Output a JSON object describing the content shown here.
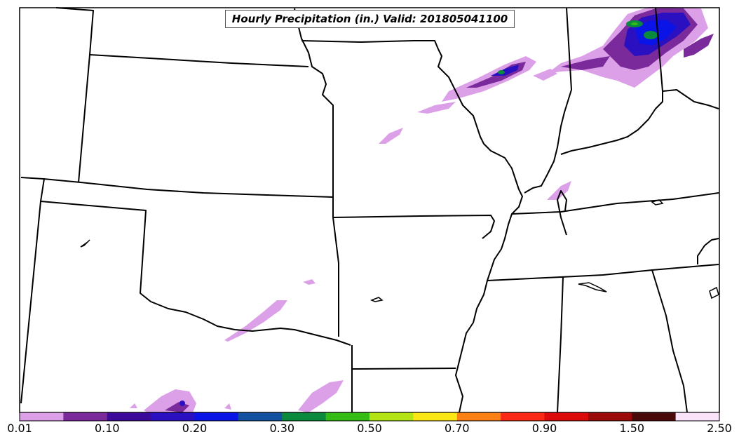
{
  "map": {
    "title": "Hourly Precipitation (in.) Valid: 201805041100"
  },
  "colorbar": {
    "colors": [
      "#dca0e8",
      "#7a2a9a",
      "#3c0a9a",
      "#2a10c0",
      "#0a14e6",
      "#1450a0",
      "#0a8a3c",
      "#34bc14",
      "#b4e414",
      "#fae614",
      "#fa8014",
      "#fa2814",
      "#dc0a0a",
      "#9a0a0a",
      "#4a0a0a",
      "#fae4fa"
    ],
    "labels": [
      "0.01",
      "0.10",
      "0.20",
      "0.30",
      "0.50",
      "0.70",
      "0.90",
      "1.50",
      "2.50"
    ]
  }
}
